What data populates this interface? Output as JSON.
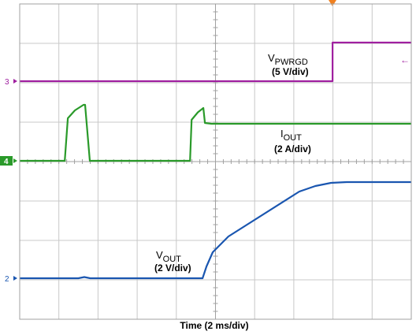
{
  "chart_data": {
    "type": "line",
    "xlabel": "Time (2 ms/div)",
    "xlim": [
      0,
      10
    ],
    "ylim": [
      0,
      8
    ],
    "grid": true,
    "series": [
      {
        "name": "V",
        "subscript": "PWRGD",
        "scale": "(5 V/div)",
        "marker": "3",
        "color": "#a020a0",
        "x": [
          0,
          7.99,
          7.99,
          10
        ],
        "values": [
          6.04,
          6.04,
          7.02,
          7.02
        ]
      },
      {
        "name": "I",
        "subscript": "OUT",
        "scale": "(2 A/div)",
        "marker": "4",
        "color": "#2a9a2a",
        "x": [
          0,
          1.15,
          1.23,
          1.41,
          1.63,
          1.67,
          1.79,
          4.35,
          4.39,
          4.55,
          4.69,
          4.73,
          4.9,
          10
        ],
        "values": [
          4.02,
          4.02,
          5.1,
          5.3,
          5.44,
          5.44,
          4.02,
          4.02,
          5.06,
          5.25,
          5.36,
          4.98,
          4.96,
          4.96
        ]
      },
      {
        "name": "V",
        "subscript": "OUT",
        "scale": "(2 V/div)",
        "marker": "2",
        "color": "#1a56b0",
        "x": [
          0,
          1.5,
          1.65,
          1.8,
          4.67,
          4.77,
          4.93,
          5.33,
          7.14,
          7.55,
          7.95,
          8.35,
          10
        ],
        "values": [
          1.04,
          1.04,
          1.07,
          1.04,
          1.04,
          1.34,
          1.7,
          2.1,
          3.24,
          3.38,
          3.46,
          3.48,
          3.48
        ]
      }
    ]
  }
}
